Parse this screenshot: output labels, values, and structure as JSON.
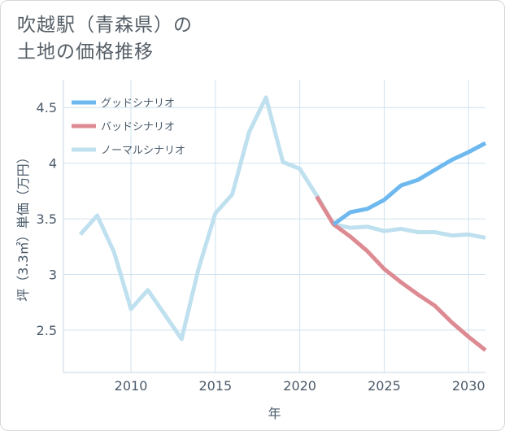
{
  "title_line1": "吹越駅（青森県）の",
  "title_line2": "土地の価格推移",
  "chart_data": {
    "type": "line",
    "xlabel": "年",
    "ylabel": "坪（3.3㎡）単価（万円）",
    "xlim": [
      2006,
      2031
    ],
    "ylim": [
      2.12,
      4.75
    ],
    "xticks": [
      2010,
      2015,
      2020,
      2025,
      2030
    ],
    "yticks": [
      2.5,
      3,
      3.5,
      4,
      4.5
    ],
    "ytick_labels": [
      "2.5",
      "3",
      "3.5",
      "4",
      "4.5"
    ],
    "grid": true,
    "legend_position": "top-left",
    "series": [
      {
        "name": "グッドシナリオ",
        "color": "#6db8ee",
        "x": [
          2022,
          2023,
          2024,
          2025,
          2026,
          2027,
          2028,
          2029,
          2030,
          2031
        ],
        "y": [
          3.45,
          3.56,
          3.59,
          3.67,
          3.8,
          3.85,
          3.94,
          4.03,
          4.1,
          4.18
        ]
      },
      {
        "name": "バッドシナリオ",
        "color": "#dd8a92",
        "x": [
          2021,
          2022,
          2023,
          2024,
          2025,
          2026,
          2027,
          2028,
          2029,
          2030,
          2031
        ],
        "y": [
          3.7,
          3.45,
          3.34,
          3.21,
          3.05,
          2.93,
          2.82,
          2.72,
          2.57,
          2.44,
          2.32
        ]
      },
      {
        "name": "ノーマルシナリオ",
        "color": "#bfe0ee",
        "x": [
          2007,
          2008,
          2009,
          2010,
          2011,
          2012,
          2013,
          2014,
          2015,
          2016,
          2017,
          2018,
          2019,
          2020,
          2021,
          2022,
          2023,
          2024,
          2025,
          2026,
          2027,
          2028,
          2029,
          2030,
          2031
        ],
        "y": [
          3.36,
          3.53,
          3.2,
          2.69,
          2.86,
          2.64,
          2.42,
          3.05,
          3.55,
          3.72,
          4.28,
          4.59,
          4.01,
          3.95,
          3.71,
          3.45,
          3.42,
          3.43,
          3.39,
          3.41,
          3.38,
          3.38,
          3.35,
          3.36,
          3.33
        ]
      }
    ]
  }
}
